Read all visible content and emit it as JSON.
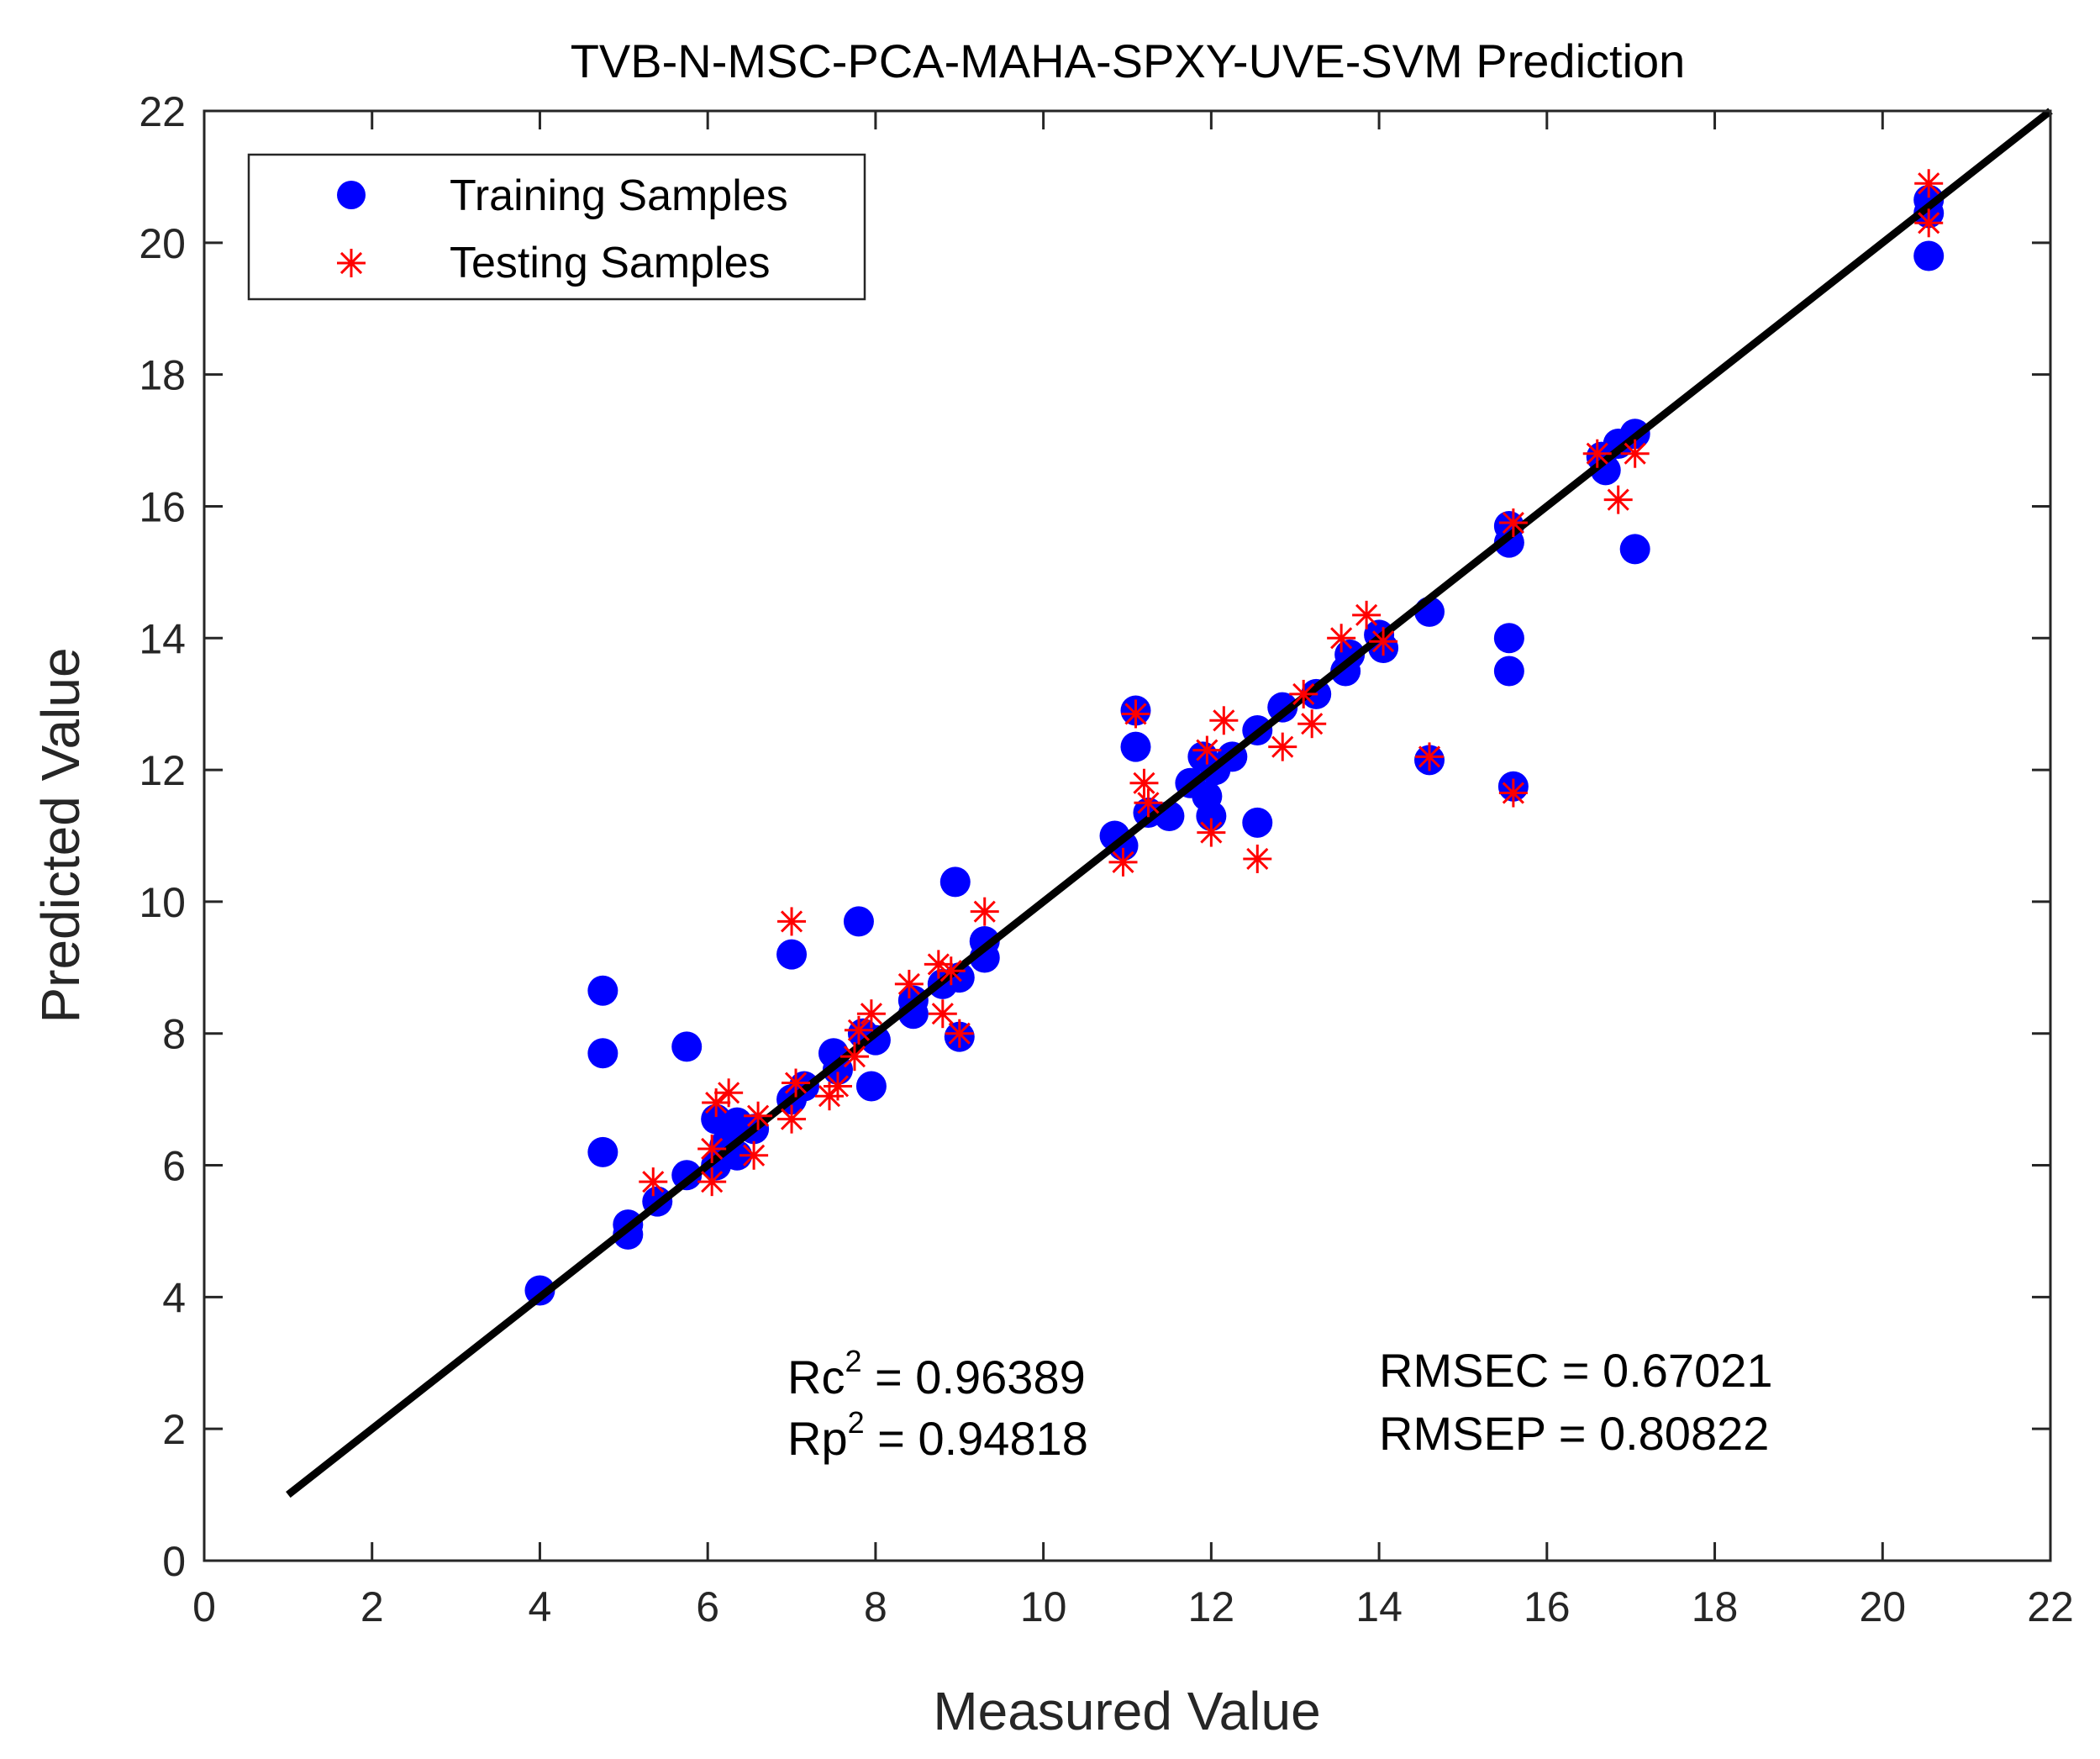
{
  "chart_data": {
    "type": "scatter",
    "title": "TVB-N-MSC-PCA-MAHA-SPXY-UVE-SVM Prediction",
    "xlabel": "Measured Value",
    "ylabel": "Predicted Value",
    "xlim": [
      0,
      22
    ],
    "ylim": [
      0,
      22
    ],
    "xticks": [
      "0",
      "2",
      "4",
      "6",
      "8",
      "10",
      "12",
      "14",
      "16",
      "18",
      "20",
      "22"
    ],
    "yticks": [
      "0",
      "2",
      "4",
      "6",
      "8",
      "10",
      "12",
      "14",
      "16",
      "18",
      "20",
      "22"
    ],
    "grid": false,
    "legend_position": "top-left",
    "colors": {
      "training": "#0000ff",
      "testing": "#ff0000",
      "line": "#000000",
      "axes": "#262626"
    },
    "legend": [
      "Training Samples",
      "Testing Samples"
    ],
    "reference_line": {
      "x": [
        1,
        22
      ],
      "y": [
        1,
        22
      ]
    },
    "series": [
      {
        "name": "Training Samples",
        "marker": "circle",
        "points": [
          [
            4.0,
            4.1
          ],
          [
            4.75,
            8.65
          ],
          [
            4.75,
            7.7
          ],
          [
            4.75,
            6.2
          ],
          [
            5.05,
            5.1
          ],
          [
            5.05,
            4.95
          ],
          [
            5.4,
            5.45
          ],
          [
            5.75,
            7.8
          ],
          [
            5.75,
            5.85
          ],
          [
            6.1,
            6.7
          ],
          [
            6.1,
            6.0
          ],
          [
            6.2,
            6.3
          ],
          [
            6.35,
            6.65
          ],
          [
            6.35,
            6.15
          ],
          [
            6.55,
            6.55
          ],
          [
            7.0,
            9.2
          ],
          [
            7.0,
            7.0
          ],
          [
            7.15,
            7.2
          ],
          [
            7.5,
            7.7
          ],
          [
            7.55,
            7.45
          ],
          [
            7.8,
            9.7
          ],
          [
            7.85,
            8.0
          ],
          [
            7.95,
            7.2
          ],
          [
            8.0,
            7.9
          ],
          [
            8.45,
            8.5
          ],
          [
            8.45,
            8.3
          ],
          [
            8.8,
            8.75
          ],
          [
            8.95,
            10.3
          ],
          [
            9.0,
            8.85
          ],
          [
            9.0,
            7.95
          ],
          [
            9.3,
            9.4
          ],
          [
            9.3,
            9.15
          ],
          [
            10.85,
            11.0
          ],
          [
            10.95,
            10.85
          ],
          [
            11.1,
            12.9
          ],
          [
            11.1,
            12.35
          ],
          [
            11.25,
            11.35
          ],
          [
            11.5,
            11.3
          ],
          [
            11.75,
            11.8
          ],
          [
            11.9,
            12.2
          ],
          [
            11.95,
            11.6
          ],
          [
            12.0,
            11.3
          ],
          [
            12.05,
            12.0
          ],
          [
            12.25,
            12.2
          ],
          [
            12.55,
            12.6
          ],
          [
            12.55,
            11.2
          ],
          [
            12.85,
            12.95
          ],
          [
            13.25,
            13.15
          ],
          [
            13.6,
            13.5
          ],
          [
            13.65,
            13.75
          ],
          [
            14.0,
            14.05
          ],
          [
            14.05,
            13.85
          ],
          [
            14.6,
            14.4
          ],
          [
            14.6,
            12.15
          ],
          [
            15.55,
            15.7
          ],
          [
            15.55,
            15.45
          ],
          [
            15.55,
            14.0
          ],
          [
            15.55,
            13.5
          ],
          [
            15.6,
            11.75
          ],
          [
            16.65,
            16.75
          ],
          [
            16.7,
            16.55
          ],
          [
            16.85,
            16.95
          ],
          [
            17.05,
            17.1
          ],
          [
            17.05,
            15.35
          ],
          [
            20.55,
            20.65
          ],
          [
            20.55,
            20.45
          ],
          [
            20.55,
            19.8
          ]
        ]
      },
      {
        "name": "Testing Samples",
        "marker": "asterisk",
        "points": [
          [
            5.35,
            5.75
          ],
          [
            6.05,
            5.75
          ],
          [
            6.05,
            6.25
          ],
          [
            6.1,
            6.95
          ],
          [
            6.25,
            7.1
          ],
          [
            6.55,
            6.15
          ],
          [
            6.6,
            6.75
          ],
          [
            7.0,
            9.7
          ],
          [
            7.0,
            6.7
          ],
          [
            7.05,
            7.25
          ],
          [
            7.45,
            7.05
          ],
          [
            7.55,
            7.2
          ],
          [
            7.75,
            7.65
          ],
          [
            7.8,
            8.05
          ],
          [
            7.95,
            8.3
          ],
          [
            8.4,
            8.75
          ],
          [
            8.75,
            9.05
          ],
          [
            8.8,
            8.3
          ],
          [
            8.9,
            8.95
          ],
          [
            9.0,
            8.0
          ],
          [
            9.3,
            9.85
          ],
          [
            10.95,
            10.6
          ],
          [
            11.1,
            12.85
          ],
          [
            11.2,
            11.8
          ],
          [
            11.25,
            11.5
          ],
          [
            11.95,
            12.3
          ],
          [
            12.0,
            11.05
          ],
          [
            12.15,
            12.75
          ],
          [
            12.55,
            10.65
          ],
          [
            12.85,
            12.35
          ],
          [
            13.1,
            13.15
          ],
          [
            13.2,
            12.7
          ],
          [
            13.55,
            14.0
          ],
          [
            13.85,
            14.35
          ],
          [
            14.05,
            13.95
          ],
          [
            14.6,
            12.2
          ],
          [
            15.6,
            15.75
          ],
          [
            15.6,
            11.65
          ],
          [
            16.6,
            16.8
          ],
          [
            16.85,
            16.1
          ],
          [
            17.05,
            16.8
          ],
          [
            20.55,
            20.9
          ],
          [
            20.55,
            20.3
          ]
        ]
      }
    ],
    "annotations": {
      "rc_label": "Rc",
      "rc_exp": "2",
      "rc_value": " = 0.96389",
      "rp_label": "Rp",
      "rp_exp": "2",
      "rp_value": " = 0.94818",
      "rmsec": "RMSEC = 0.67021",
      "rmsep": "RMSEP = 0.80822"
    }
  }
}
